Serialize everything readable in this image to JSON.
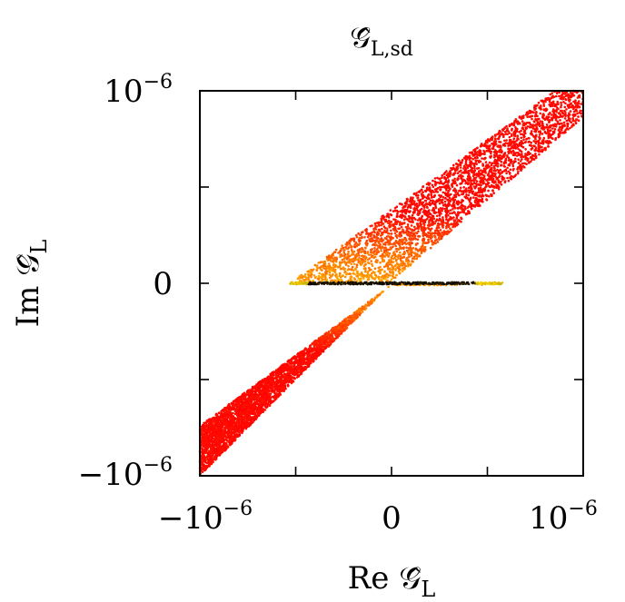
{
  "chart_data": {
    "type": "scatter",
    "title": "𝒢̂_{L,sd}",
    "title_parts": {
      "base": "𝒢̂",
      "sub": "L,sd"
    },
    "xlabel": "Re 𝒢̂_L",
    "xlabel_parts": {
      "prefix": "Re ",
      "base": "𝒢̂",
      "sub": "L"
    },
    "ylabel": "Im 𝒢̂_L",
    "ylabel_parts": {
      "prefix": "Im ",
      "base": "𝒢̂",
      "sub": "L"
    },
    "xlim": [
      -1e-06,
      1e-06
    ],
    "ylim": [
      -1e-06,
      1e-06
    ],
    "x_ticks": [
      {
        "value": -1e-06,
        "label": "−10",
        "exp": "−6"
      },
      {
        "value": 0,
        "label": "0",
        "exp": ""
      },
      {
        "value": 1e-06,
        "label": "10",
        "exp": "−6"
      }
    ],
    "y_ticks": [
      {
        "value": 1e-06,
        "label": "10",
        "exp": "−6"
      },
      {
        "value": 0,
        "label": "0",
        "exp": ""
      },
      {
        "value": -1e-06,
        "label": "−10",
        "exp": "−6"
      }
    ],
    "minor_tick_values": [
      -5e-07,
      5e-07
    ],
    "grid": false,
    "legend": "none",
    "colors": {
      "low": "#ff0000",
      "mid": "#ff7a00",
      "high": "#ffd400",
      "axis": "#000000"
    },
    "regions": [
      {
        "name": "upper band",
        "vertices": [
          [
            -5.3e-07,
            0
          ],
          [
            -1e-08,
            0
          ],
          [
            1e-06,
            8.6e-07
          ],
          [
            1e-06,
            1e-06
          ],
          [
            8.5e-07,
            1e-06
          ]
        ],
        "density": 1.0
      },
      {
        "name": "lower band",
        "vertices": [
          [
            -1e-06,
            -7.4e-07
          ],
          [
            -1e-06,
            -1e-06
          ],
          [
            -1e-08,
            -1e-08
          ],
          [
            5.8e-07,
            -1e-08
          ],
          [
            1e-08,
            0
          ]
        ],
        "density": 1.0
      },
      {
        "name": "real axis line",
        "vertices": [
          [
            -5.3e-07,
            1e-08
          ],
          [
            5.8e-07,
            1e-08
          ],
          [
            5.8e-07,
            -1e-08
          ],
          [
            -5.3e-07,
            -1e-08
          ]
        ],
        "density": 1.0
      }
    ]
  }
}
